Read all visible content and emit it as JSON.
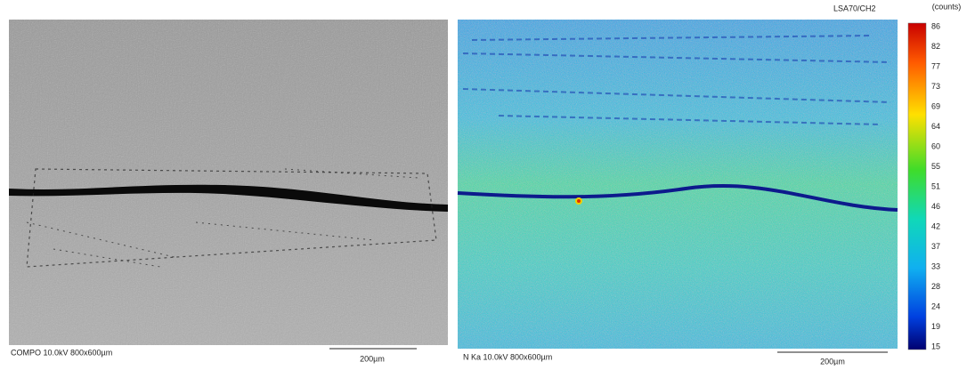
{
  "left_panel": {
    "caption": "COMPO 10.0kV 800x600µm",
    "scale_bar": "200µm"
  },
  "right_panel": {
    "header": "LSA70/CH2",
    "caption": "N Ka 10.0kV 800x600µm",
    "scale_bar": "200µm"
  },
  "colorbar": {
    "unit": "(counts)",
    "ticks": [
      86,
      82,
      77,
      73,
      69,
      64,
      60,
      55,
      51,
      46,
      42,
      37,
      33,
      28,
      24,
      19,
      15
    ]
  }
}
